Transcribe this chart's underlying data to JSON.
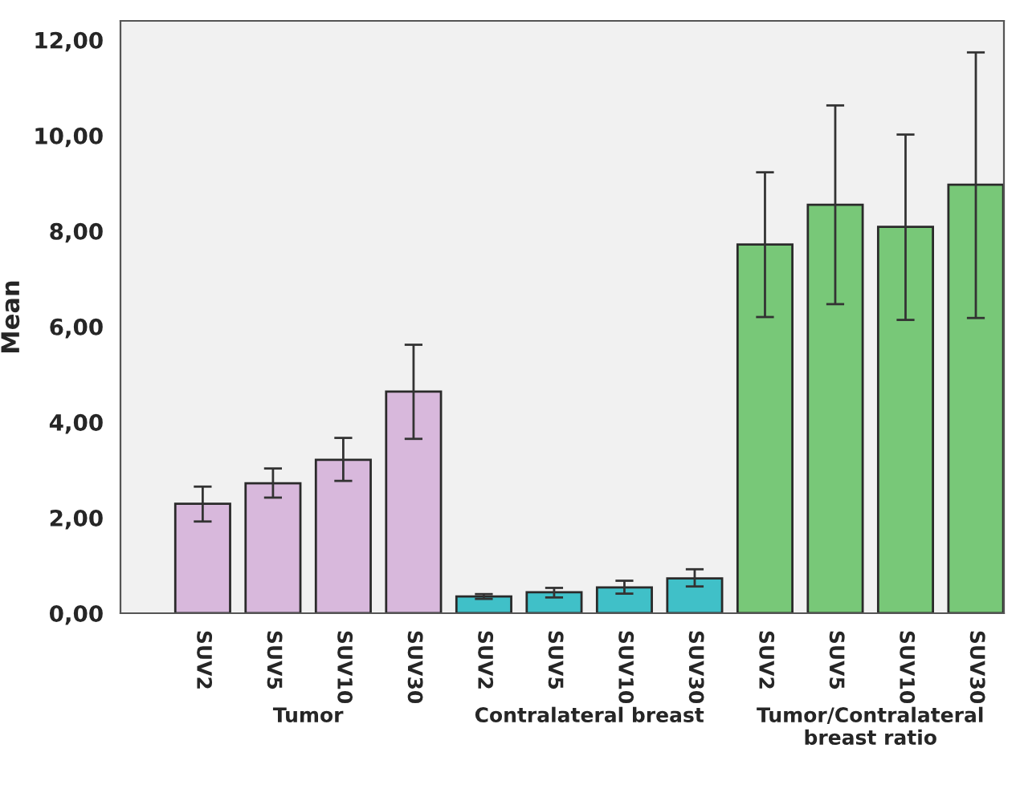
{
  "chart_data": {
    "type": "bar",
    "ylabel": "Mean",
    "categories": [
      "SUV2",
      "SUV5",
      "SUV10",
      "SUV30",
      "SUV2",
      "SUV5",
      "SUV10",
      "SUV30",
      "SUV2",
      "SUV5",
      "SUV10",
      "SUV30"
    ],
    "values": [
      2.29,
      2.72,
      3.21,
      4.64,
      0.35,
      0.44,
      0.54,
      0.73,
      7.72,
      8.55,
      8.09,
      8.97
    ],
    "errors": [
      [
        1.92,
        2.65
      ],
      [
        2.42,
        3.03
      ],
      [
        2.77,
        3.67
      ],
      [
        3.65,
        5.62
      ],
      [
        0.3,
        0.4
      ],
      [
        0.33,
        0.53
      ],
      [
        0.41,
        0.68
      ],
      [
        0.56,
        0.92
      ],
      [
        6.2,
        9.23
      ],
      [
        6.47,
        10.63
      ],
      [
        6.14,
        10.02
      ],
      [
        6.18,
        11.74
      ]
    ],
    "colors": [
      "#d8b8dc",
      "#d8b8dc",
      "#d8b8dc",
      "#d8b8dc",
      "#40c0c8",
      "#40c0c8",
      "#40c0c8",
      "#40c0c8",
      "#78c878",
      "#78c878",
      "#78c878",
      "#78c878"
    ],
    "ylim": [
      0,
      12.4
    ],
    "yticks": [
      {
        "value": 0,
        "label": "0,00"
      },
      {
        "value": 2,
        "label": "2,00"
      },
      {
        "value": 4,
        "label": "4,00"
      },
      {
        "value": 6,
        "label": "6,00"
      },
      {
        "value": 8,
        "label": "8,00"
      },
      {
        "value": 10,
        "label": "10,00"
      },
      {
        "value": 12,
        "label": "12,00"
      }
    ],
    "annotations": [
      "Tumor",
      "Contralateral breast",
      "Tumor/Contralateral\nbreast ratio"
    ],
    "grid": false,
    "legend": false
  }
}
